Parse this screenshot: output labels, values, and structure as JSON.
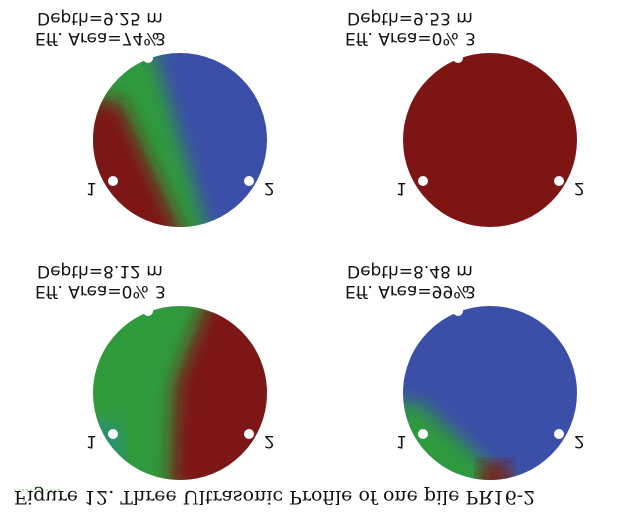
{
  "figure": {
    "caption": "Figure 12. Three Ultrasonic Profile of one pile PR16-2",
    "panels": [
      {
        "depth": "Depth=9.25 m",
        "area": "Eff. Area=74%",
        "tube3": "3",
        "tube1": "1",
        "tube2": "2"
      },
      {
        "depth": "Depth=9.53 m",
        "area": "Eff. Area=0%",
        "tube3": "3",
        "tube1": "1",
        "tube2": "2"
      },
      {
        "depth": "Depth=8.12 m",
        "area": "Eff. Area=0%",
        "tube3": "3",
        "tube1": "1",
        "tube2": "2"
      },
      {
        "depth": "Depth=8.48 m",
        "area": "Eff. Area=99%",
        "tube3": "3",
        "tube1": "1",
        "tube2": "2"
      }
    ]
  }
}
